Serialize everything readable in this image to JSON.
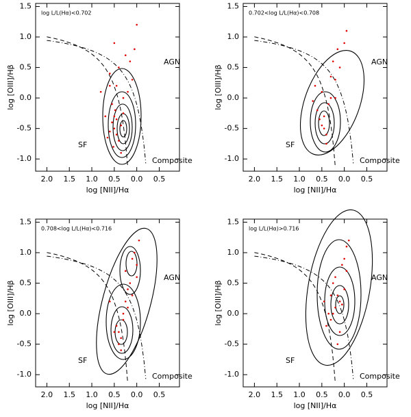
{
  "chart_data": [
    {
      "type": "scatter",
      "title": "log L/L(Hα)<0.702",
      "xlabel": "log [NII]/Hα",
      "ylabel": "log [OIII]/Hβ",
      "annotations": [
        "SF",
        "AGN",
        "Composite"
      ],
      "color": "#e00000",
      "xlim": [
        -2.25,
        0.95
      ],
      "ylim": [
        -1.2,
        1.55
      ],
      "xticks": [
        {
          "value": -2,
          "label": "2.0"
        },
        {
          "value": -1.5,
          "label": "1.5"
        },
        {
          "value": -1,
          "label": "1.0"
        },
        {
          "value": -0.5,
          "label": "0.5"
        },
        {
          "value": 0,
          "label": "0.0"
        },
        0.5
      ],
      "yticks": [
        1.5,
        {
          "value": 1,
          "label": "1.0"
        },
        0.5,
        {
          "value": 0,
          "label": "0.0"
        },
        -0.5,
        {
          "value": -1,
          "label": "-1.0"
        }
      ],
      "x": [
        -0.5,
        -0.45,
        -0.55,
        -0.4,
        -0.6,
        -0.5,
        -0.35,
        -0.65,
        -0.48,
        -0.52,
        -0.3,
        -0.7,
        -0.45,
        -0.2,
        -0.6,
        -0.4,
        -0.1,
        -0.55,
        -0.25,
        -0.8,
        -0.35,
        -0.5,
        0.0,
        -0.15,
        -0.45,
        -0.3,
        -0.6,
        -0.05
      ],
      "values": [
        -0.5,
        -0.6,
        -0.4,
        -0.7,
        -0.55,
        -0.3,
        -0.45,
        -0.65,
        -0.2,
        -0.8,
        0.0,
        -0.3,
        0.2,
        0.1,
        0.4,
        0.5,
        0.3,
        -0.1,
        0.7,
        0.1,
        -0.9,
        0.9,
        1.2,
        0.6,
        -0.35,
        -0.25,
        0.2,
        0.8
      ]
    },
    {
      "type": "scatter",
      "title": "0.702<log L/L(Hα)<0.708",
      "xlabel": "log [NII]/Hα",
      "ylabel": "log [OIII]/Hβ",
      "annotations": [
        "SF",
        "AGN",
        "Composite"
      ],
      "color": "#e00000",
      "xlim": [
        -2.25,
        0.95
      ],
      "ylim": [
        -1.2,
        1.55
      ],
      "xticks": [
        {
          "value": -2,
          "label": "2.0"
        },
        {
          "value": -1.5,
          "label": "1.5"
        },
        {
          "value": -1,
          "label": "1.0"
        },
        {
          "value": -0.5,
          "label": "0.5"
        },
        {
          "value": 0,
          "label": "0.0"
        },
        0.5
      ],
      "yticks": [
        1.5,
        {
          "value": 1,
          "label": "1.0"
        },
        0.5,
        {
          "value": 0,
          "label": "0.0"
        },
        -0.5,
        {
          "value": -1,
          "label": "-1.0"
        }
      ],
      "x": [
        -0.5,
        -0.45,
        -0.55,
        -0.4,
        -0.6,
        -0.3,
        -0.2,
        -0.1,
        0.0,
        -0.35,
        -0.5,
        -0.25,
        -0.15,
        -0.65,
        -0.4,
        0.05,
        -0.3,
        -0.45,
        -0.7,
        -0.2
      ],
      "values": [
        -0.45,
        -0.5,
        -0.35,
        -0.6,
        -0.2,
        0.0,
        0.3,
        0.5,
        0.9,
        -0.1,
        0.1,
        0.6,
        0.8,
        0.2,
        -0.75,
        1.1,
        0.35,
        -0.3,
        -0.05,
        0.0
      ]
    },
    {
      "type": "scatter",
      "title": "0.708<log L/L(Hα)<0.716",
      "xlabel": "log [NII]/Hα",
      "ylabel": "log [OIII]/Hβ",
      "annotations": [
        "SF",
        "AGN",
        "Composite"
      ],
      "color": "#e00000",
      "xlim": [
        -2.25,
        0.95
      ],
      "ylim": [
        -1.2,
        1.55
      ],
      "xticks": [
        {
          "value": -2,
          "label": "2.0"
        },
        {
          "value": -1.5,
          "label": "1.5"
        },
        {
          "value": -1,
          "label": "1.0"
        },
        {
          "value": -0.5,
          "label": "0.5"
        },
        {
          "value": 0,
          "label": "0.0"
        },
        0.5
      ],
      "yticks": [
        1.5,
        {
          "value": 1,
          "label": "1.0"
        },
        0.5,
        {
          "value": 0,
          "label": "0.0"
        },
        -0.5,
        {
          "value": -1,
          "label": "-1.0"
        }
      ],
      "x": [
        -0.4,
        -0.35,
        -0.45,
        -0.3,
        -0.2,
        -0.1,
        0.0,
        -0.15,
        -0.25,
        -0.05,
        0.05,
        -0.4,
        -0.5,
        -0.3,
        -0.2,
        -0.6,
        0.0,
        -0.1,
        -0.35,
        -0.25
      ],
      "values": [
        -0.3,
        -0.4,
        -0.2,
        -0.1,
        0.1,
        0.3,
        0.8,
        0.5,
        0.2,
        1.0,
        1.2,
        -0.5,
        -0.3,
        0.0,
        0.4,
        0.2,
        0.6,
        0.9,
        -0.6,
        0.7
      ]
    },
    {
      "type": "scatter",
      "title": "log L/L(Hα)>0.716",
      "xlabel": "log [NII]/Hα",
      "ylabel": "log [OIII]/Hβ",
      "annotations": [
        "SF",
        "AGN",
        "Composite"
      ],
      "color": "#e00000",
      "xlim": [
        -2.25,
        0.95
      ],
      "ylim": [
        -1.2,
        1.55
      ],
      "xticks": [
        {
          "value": -2,
          "label": "2.0"
        },
        {
          "value": -1.5,
          "label": "1.5"
        },
        {
          "value": -1,
          "label": "1.0"
        },
        {
          "value": -0.5,
          "label": "0.5"
        },
        {
          "value": 0,
          "label": "0.0"
        },
        0.5
      ],
      "yticks": [
        1.5,
        {
          "value": 1,
          "label": "1.0"
        },
        0.5,
        {
          "value": 0,
          "label": "0.0"
        },
        -0.5,
        {
          "value": -1,
          "label": "-1.0"
        }
      ],
      "x": [
        -0.2,
        -0.1,
        -0.25,
        0.0,
        -0.15,
        -0.3,
        -0.05,
        0.05,
        -0.2,
        -0.35,
        -0.1,
        0.0,
        -0.4,
        -0.25,
        0.1,
        -0.15,
        -0.3,
        -0.05,
        -0.45,
        0.05
      ],
      "values": [
        0.1,
        0.2,
        0.0,
        0.4,
        0.3,
        -0.1,
        0.8,
        1.1,
        0.6,
        0.0,
        -0.3,
        0.9,
        -0.2,
        0.5,
        1.2,
        -0.5,
        0.3,
        0.15,
        0.2,
        0.7
      ]
    }
  ]
}
